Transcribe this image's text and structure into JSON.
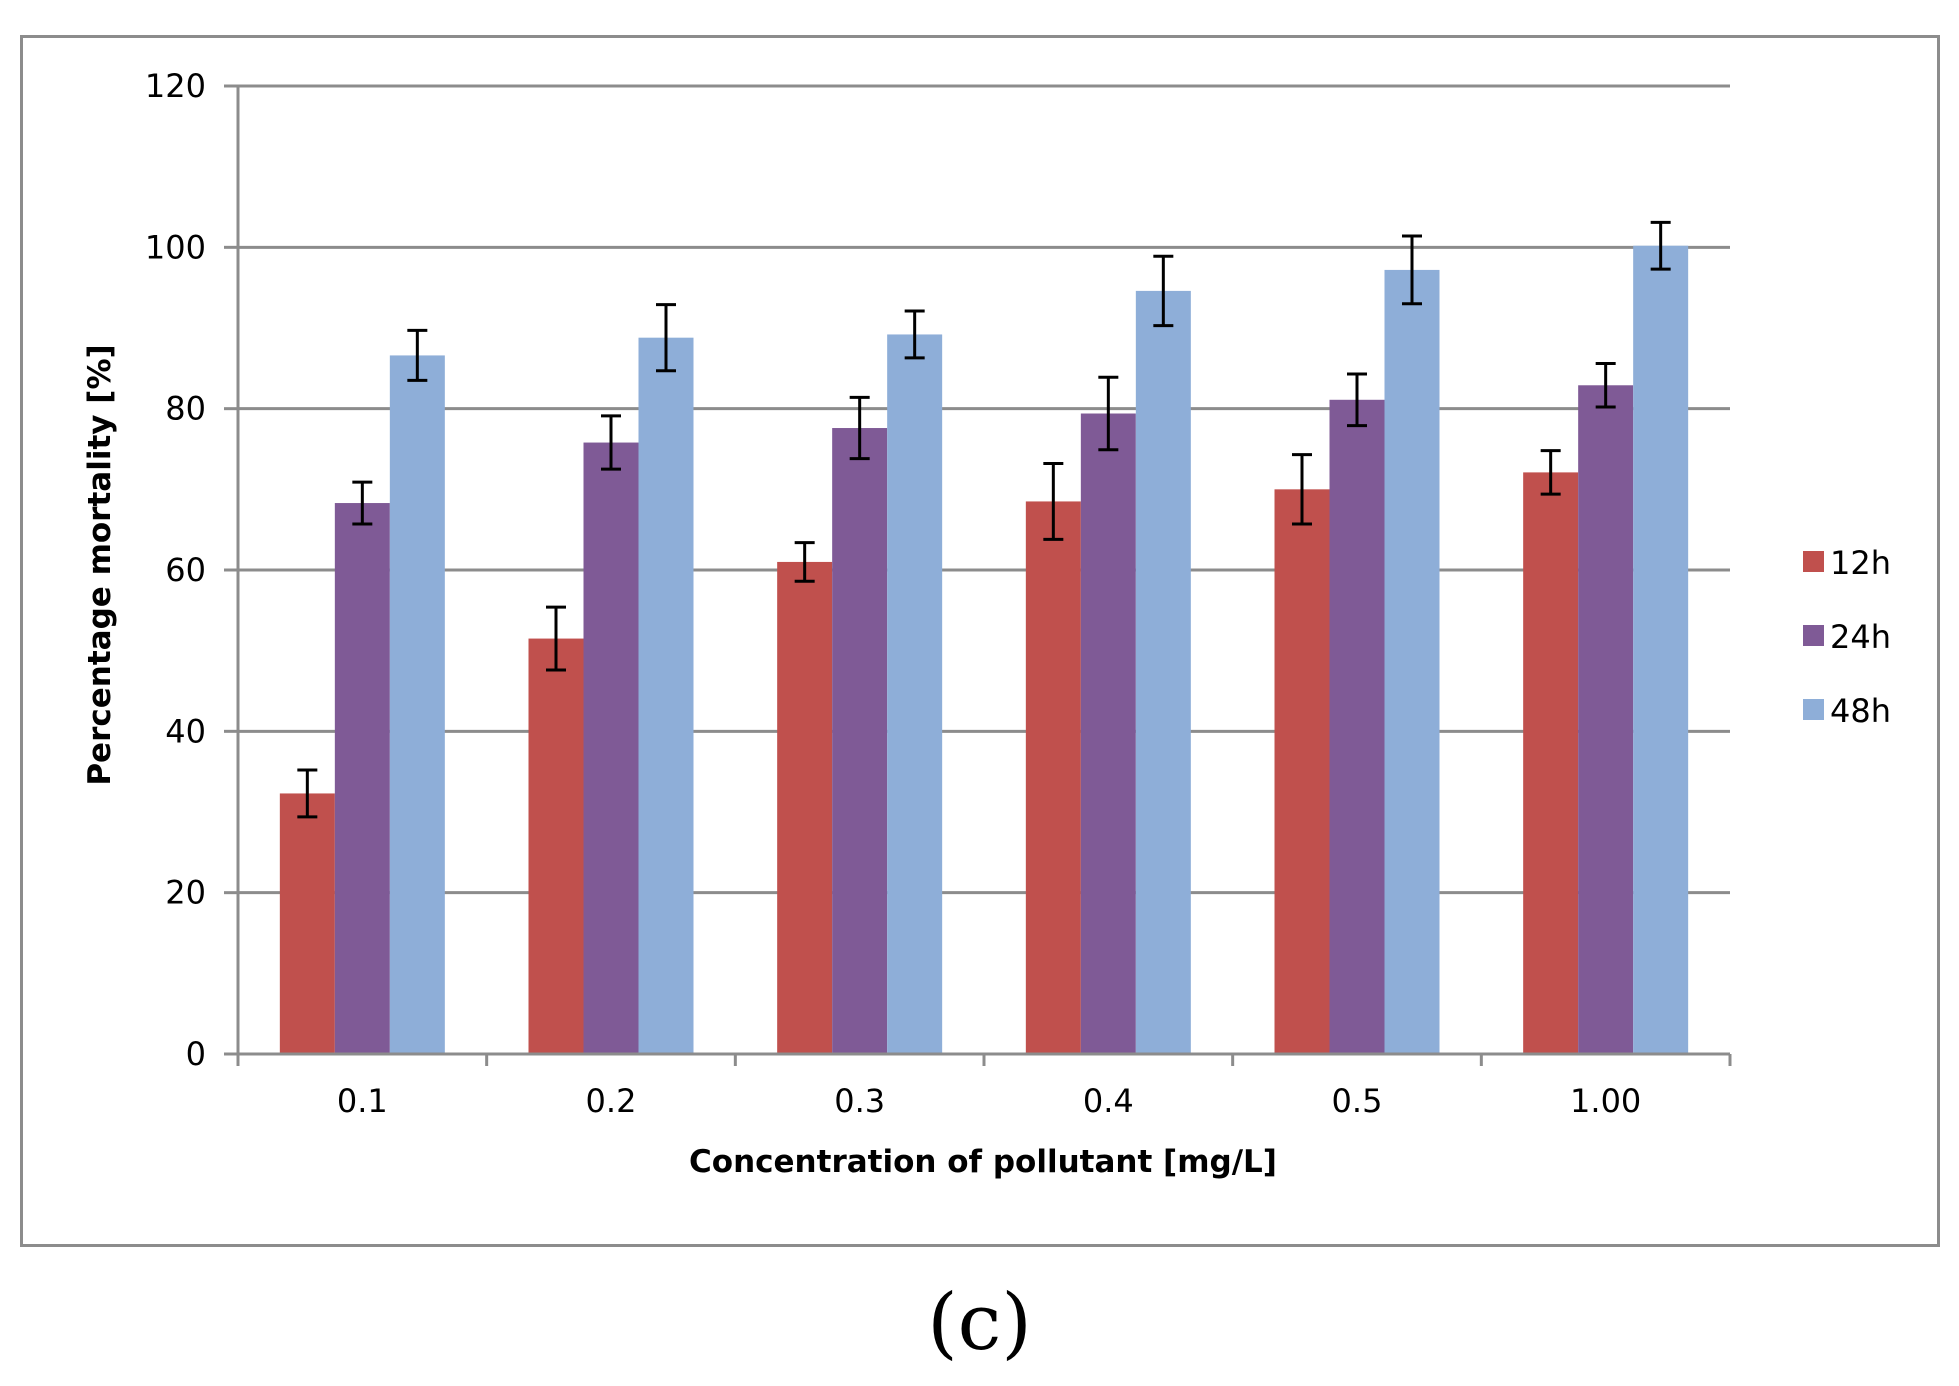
{
  "chart_data": {
    "type": "bar",
    "xlabel": "Concentration of pollutant [mg/L]",
    "ylabel": "Percentage mortality [%]",
    "ylim": [
      0,
      120
    ],
    "yticks": [
      0,
      20,
      40,
      60,
      80,
      100,
      120
    ],
    "grid": true,
    "legend_position": "right",
    "categories": [
      "0.1",
      "0.2",
      "0.3",
      "0.4",
      "0.5",
      "1.00"
    ],
    "series": [
      {
        "name": "12h",
        "color": "#c0504d",
        "values": [
          32.3,
          51.5,
          61.0,
          68.5,
          70.0,
          72.1
        ],
        "errors": [
          2.9,
          3.9,
          2.4,
          4.7,
          4.3,
          2.7
        ]
      },
      {
        "name": "24h",
        "color": "#7f5a96",
        "values": [
          68.3,
          75.8,
          77.6,
          79.4,
          81.1,
          82.9
        ],
        "errors": [
          2.6,
          3.3,
          3.8,
          4.5,
          3.2,
          2.7
        ]
      },
      {
        "name": "48h",
        "color": "#8eaed8",
        "values": [
          86.6,
          88.8,
          89.2,
          94.6,
          97.2,
          100.2
        ],
        "errors": [
          3.1,
          4.1,
          2.9,
          4.3,
          4.2,
          2.9
        ]
      }
    ]
  },
  "panel_label": "(c)"
}
